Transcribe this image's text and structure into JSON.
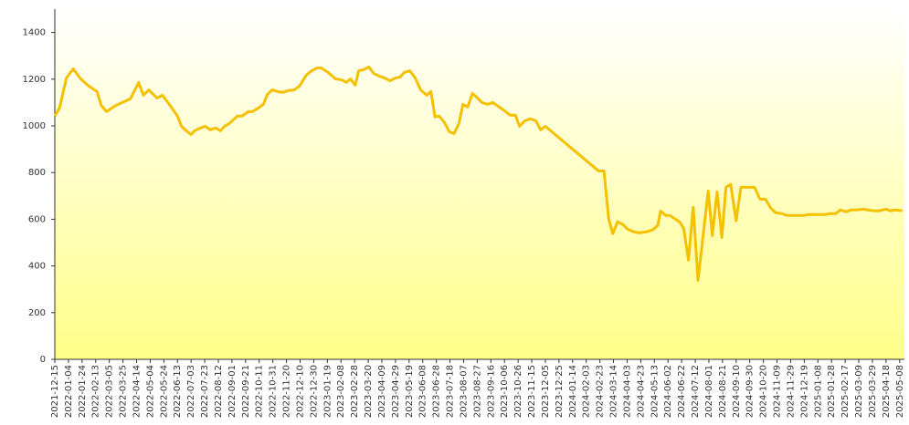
{
  "chart_data": {
    "type": "line",
    "x": [
      "2021-12-15",
      "2021-12-22",
      "2022-01-01",
      "2022-01-11",
      "2022-01-22",
      "2022-02-03",
      "2022-02-15",
      "2022-02-21",
      "2022-03-01",
      "2022-03-09",
      "2022-03-15",
      "2022-03-27",
      "2022-04-05",
      "2022-04-17",
      "2022-04-24",
      "2022-05-02",
      "2022-05-14",
      "2022-05-22",
      "2022-06-02",
      "2022-06-13",
      "2022-06-19",
      "2022-06-26",
      "2022-07-03",
      "2022-07-08",
      "2022-07-17",
      "2022-07-24",
      "2022-07-31",
      "2022-08-08",
      "2022-08-15",
      "2022-08-21",
      "2022-08-28",
      "2022-09-09",
      "2022-09-16",
      "2022-09-25",
      "2022-10-01",
      "2022-10-10",
      "2022-10-17",
      "2022-10-23",
      "2022-10-30",
      "2022-11-07",
      "2022-11-15",
      "2022-11-22",
      "2022-12-01",
      "2022-12-09",
      "2022-12-19",
      "2022-12-27",
      "2023-01-04",
      "2023-01-10",
      "2023-01-20",
      "2023-01-31",
      "2023-02-09",
      "2023-02-16",
      "2023-02-22",
      "2023-03-01",
      "2023-03-06",
      "2023-03-13",
      "2023-03-21",
      "2023-03-28",
      "2023-04-05",
      "2023-04-13",
      "2023-04-21",
      "2023-04-29",
      "2023-05-06",
      "2023-05-12",
      "2023-05-20",
      "2023-05-28",
      "2023-06-05",
      "2023-06-14",
      "2023-06-20",
      "2023-06-26",
      "2023-07-02",
      "2023-07-10",
      "2023-07-17",
      "2023-07-24",
      "2023-07-31",
      "2023-08-06",
      "2023-08-13",
      "2023-08-20",
      "2023-08-26",
      "2023-09-03",
      "2023-09-11",
      "2023-09-19",
      "2023-09-26",
      "2023-10-06",
      "2023-10-14",
      "2023-10-22",
      "2023-10-28",
      "2023-11-05",
      "2023-11-13",
      "2023-11-21",
      "2023-11-28",
      "2023-12-05",
      "2024-02-21",
      "2024-02-29",
      "2024-03-07",
      "2024-03-13",
      "2024-03-20",
      "2024-03-28",
      "2024-04-04",
      "2024-04-13",
      "2024-04-21",
      "2024-05-01",
      "2024-05-10",
      "2024-05-18",
      "2024-05-22",
      "2024-05-30",
      "2024-06-05",
      "2024-06-13",
      "2024-06-19",
      "2024-06-25",
      "2024-07-02",
      "2024-07-09",
      "2024-07-16",
      "2024-07-24",
      "2024-07-31",
      "2024-08-06",
      "2024-08-13",
      "2024-08-20",
      "2024-08-26",
      "2024-09-02",
      "2024-09-10",
      "2024-09-17",
      "2024-09-26",
      "2024-10-07",
      "2024-10-15",
      "2024-10-23",
      "2024-10-31",
      "2024-11-07",
      "2024-11-16",
      "2024-11-24",
      "2024-11-29",
      "2024-12-09",
      "2024-12-18",
      "2024-12-25",
      "2025-01-03",
      "2025-01-11",
      "2025-01-19",
      "2025-01-26",
      "2025-02-03",
      "2025-02-10",
      "2025-02-18",
      "2025-02-26",
      "2025-03-06",
      "2025-03-15",
      "2025-03-22",
      "2025-03-31",
      "2025-04-08",
      "2025-04-18",
      "2025-04-25",
      "2025-05-01",
      "2025-05-12"
    ],
    "series": [
      {
        "color": "#f5c000",
        "values": [
          1042,
          1077,
          1205,
          1244,
          1201,
          1170,
          1147,
          1088,
          1061,
          1077,
          1088,
          1104,
          1116,
          1186,
          1131,
          1154,
          1119,
          1131,
          1088,
          1042,
          998,
          979,
          963,
          979,
          991,
          998,
          983,
          991,
          979,
          998,
          1010,
          1042,
          1042,
          1061,
          1061,
          1077,
          1092,
          1135,
          1154,
          1147,
          1143,
          1151,
          1154,
          1170,
          1217,
          1236,
          1248,
          1248,
          1229,
          1201,
          1197,
          1186,
          1201,
          1174,
          1236,
          1240,
          1252,
          1225,
          1213,
          1205,
          1193,
          1205,
          1209,
          1229,
          1236,
          1205,
          1154,
          1131,
          1147,
          1038,
          1042,
          1014,
          975,
          967,
          1010,
          1092,
          1081,
          1139,
          1123,
          1100,
          1092,
          1100,
          1085,
          1065,
          1046,
          1046,
          998,
          1022,
          1030,
          1022,
          983,
          998,
          807,
          807,
          600,
          538,
          589,
          577,
          557,
          546,
          542,
          546,
          554,
          573,
          635,
          616,
          616,
          600,
          589,
          561,
          425,
          651,
          339,
          542,
          721,
          530,
          717,
          522,
          737,
          749,
          593,
          737,
          737,
          737,
          686,
          686,
          647,
          628,
          624,
          616,
          616,
          616,
          616,
          620,
          620,
          620,
          620,
          624,
          624,
          640,
          632,
          640,
          640,
          643,
          640,
          636,
          636,
          643,
          636,
          640,
          636
        ]
      }
    ],
    "xlim": [
      "2021-12-15",
      "2025-05-15"
    ],
    "xticks": [
      "2021-12-15",
      "2022-01-04",
      "2022-01-24",
      "2022-02-13",
      "2022-03-05",
      "2022-03-25",
      "2022-04-14",
      "2022-05-04",
      "2022-05-24",
      "2022-06-13",
      "2022-07-03",
      "2022-07-23",
      "2022-08-12",
      "2022-09-01",
      "2022-09-21",
      "2022-10-11",
      "2022-10-31",
      "2022-11-20",
      "2022-12-10",
      "2022-12-30",
      "2023-01-19",
      "2023-02-08",
      "2023-02-28",
      "2023-03-20",
      "2023-04-09",
      "2023-04-29",
      "2023-05-19",
      "2023-06-08",
      "2023-06-28",
      "2023-07-18",
      "2023-08-07",
      "2023-08-27",
      "2023-09-16",
      "2023-10-06",
      "2023-10-26",
      "2023-11-15",
      "2023-12-05",
      "2023-12-25",
      "2024-01-14",
      "2024-02-03",
      "2024-02-23",
      "2024-03-14",
      "2024-04-03",
      "2024-04-23",
      "2024-05-13",
      "2024-06-02",
      "2024-06-22",
      "2024-07-12",
      "2024-08-01",
      "2024-08-21",
      "2024-09-10",
      "2024-09-30",
      "2024-10-20",
      "2024-11-09",
      "2024-11-29",
      "2024-12-19",
      "2025-01-08",
      "2025-01-28",
      "2025-02-17",
      "2025-03-09",
      "2025-03-29",
      "2025-04-18",
      "2025-05-08"
    ],
    "ylim": [
      0,
      1500
    ],
    "yticks": [
      0,
      200,
      400,
      600,
      800,
      1000,
      1200,
      1400
    ]
  }
}
